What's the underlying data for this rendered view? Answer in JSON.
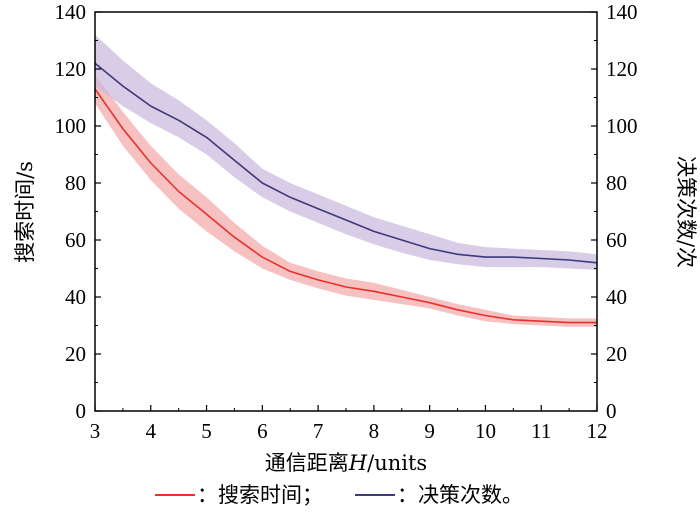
{
  "chart_data": {
    "type": "line",
    "x": [
      3,
      3.5,
      4,
      4.5,
      5,
      5.5,
      6,
      6.5,
      7,
      7.5,
      8,
      8.5,
      9,
      9.5,
      10,
      10.5,
      11,
      11.5,
      12
    ],
    "xlabel_prefix": "通信距离",
    "xlabel_var": "H",
    "xlabel_unit": "/units",
    "ylabel_left": "搜索时间/s",
    "ylabel_right": "决策次数/次",
    "xlim": [
      3,
      12
    ],
    "ylim": [
      0,
      140
    ],
    "xticks": [
      "3",
      "4",
      "5",
      "6",
      "7",
      "8",
      "9",
      "10",
      "11",
      "12"
    ],
    "yticks_left": [
      "0",
      "20",
      "40",
      "60",
      "80",
      "100",
      "120",
      "140"
    ],
    "yticks_right": [
      "0",
      "20",
      "40",
      "60",
      "80",
      "100",
      "120",
      "140"
    ],
    "grid": false,
    "legend_position": "bottom",
    "series": [
      {
        "name": "：搜索时间；",
        "axis": "left",
        "color": "#e8312a",
        "band_color": "#f4a7a7",
        "values": [
          113,
          99,
          87,
          77,
          69,
          61,
          54,
          49,
          46,
          43.5,
          42,
          40,
          38,
          35.5,
          33.5,
          32,
          31.5,
          31,
          31
        ],
        "lower": [
          108,
          93,
          81,
          71,
          63,
          56,
          50,
          46,
          43,
          40.5,
          39,
          37.5,
          36,
          33.5,
          31.5,
          30.5,
          30,
          29.5,
          29.5
        ],
        "upper": [
          118,
          105,
          93,
          83,
          75,
          66,
          58,
          52,
          49,
          46.5,
          45,
          42.5,
          40,
          37.5,
          35.5,
          33.5,
          33,
          32.5,
          32.5
        ]
      },
      {
        "name": "：决策次数。",
        "axis": "right",
        "color": "#3d3a7a",
        "band_color": "#c9b6dc",
        "values": [
          122,
          114,
          107,
          102,
          96,
          88,
          80,
          75,
          71,
          67,
          63,
          60,
          57,
          55,
          54,
          54,
          53.5,
          53,
          52
        ],
        "lower": [
          114,
          107,
          101,
          96,
          90,
          82,
          75,
          70,
          66,
          62,
          58.5,
          55.5,
          53,
          51.5,
          50.5,
          50.5,
          50.5,
          50,
          49.5
        ],
        "upper": [
          132,
          123,
          115,
          109,
          102,
          94,
          85,
          80,
          76,
          72,
          68,
          65,
          62,
          59,
          57.5,
          57,
          56.5,
          56,
          55
        ]
      }
    ]
  }
}
